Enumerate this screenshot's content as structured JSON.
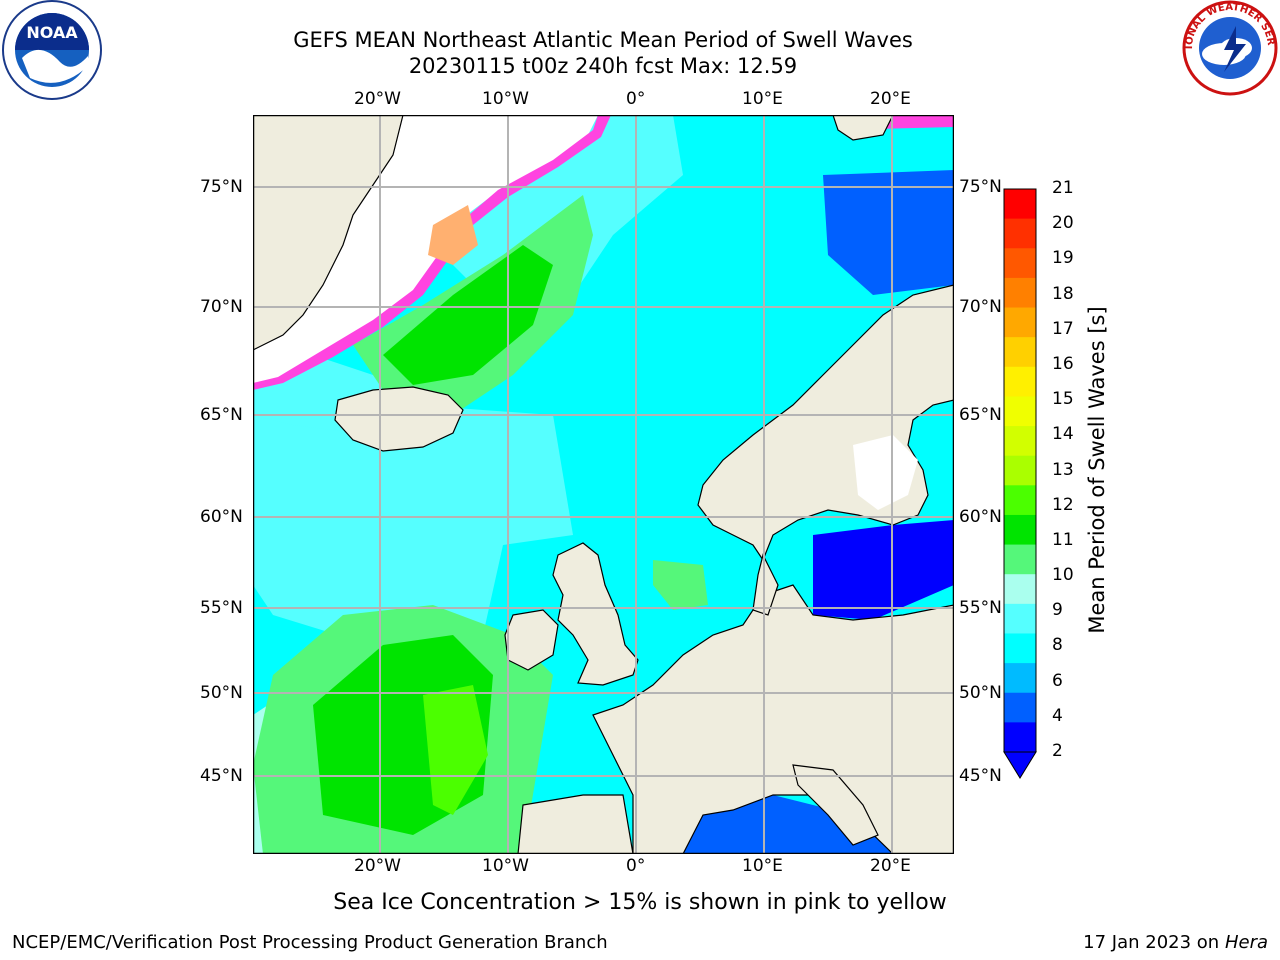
{
  "header": {
    "title_line1": "GEFS MEAN Northeast Atlantic Mean Period of Swell Waves",
    "title_line2": "20230115 t00z 240h fcst   Max: 12.59",
    "noaa_logo_text": "NOAA",
    "nws_logo_text": "NATIONAL WEATHER SERVICE"
  },
  "map": {
    "lon_ticks_top": [
      "20°W",
      "10°W",
      "0°",
      "10°E",
      "20°E"
    ],
    "lon_ticks_bottom": [
      "20°W",
      "10°W",
      "0°",
      "10°E",
      "20°E"
    ],
    "lat_ticks_left": [
      "75°N",
      "70°N",
      "65°N",
      "60°N",
      "55°N",
      "50°N",
      "45°N"
    ],
    "lat_ticks_right": [
      "75°N",
      "70°N",
      "65°N",
      "60°N",
      "55°N",
      "50°N",
      "45°N"
    ],
    "colors": {
      "land": "#efedde",
      "grid": "#b4b4b4",
      "coast": "#000000",
      "ice_pink": "#ff44e0",
      "ice_orange": "#ffb070"
    }
  },
  "colorbar": {
    "labels": [
      "21",
      "20",
      "19",
      "18",
      "17",
      "16",
      "15",
      "14",
      "13",
      "12",
      "11",
      "10",
      "9",
      "8",
      "6",
      "4",
      "2"
    ],
    "title": "Mean Period of Swell Waves [s]",
    "colors": [
      "#ff0000",
      "#ff3000",
      "#ff5800",
      "#ff8000",
      "#ffa800",
      "#ffd000",
      "#fff000",
      "#f0ff00",
      "#d2ff00",
      "#aaff00",
      "#4bff00",
      "#00e400",
      "#55f77a",
      "#aaffee",
      "#55ffff",
      "#00ffff",
      "#00bbff",
      "#0060ff",
      "#0000ff"
    ]
  },
  "caption": "Sea Ice Concentration > 15% is shown in pink to yellow",
  "footer": {
    "left": "NCEP/EMC/Verification Post Processing Product Generation Branch",
    "right_date": "17 Jan 2023 on",
    "right_host": "Hera"
  }
}
